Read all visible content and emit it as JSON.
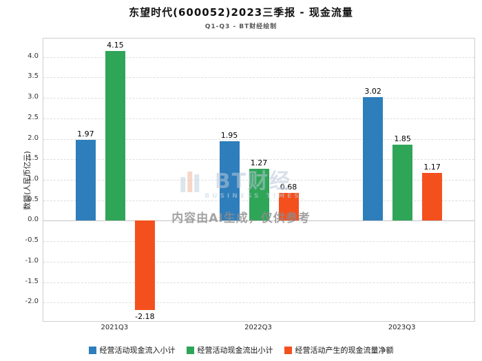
{
  "title": "东望时代(600052)2023三季报 - 现金流量",
  "subtitle": "Q1-Q3 - BT财经绘制",
  "ylabel": "数额(人民币亿元)",
  "watermark": {
    "brand": "BT财经",
    "brand_sub": "BUSINESS TIMES",
    "notice": "内容由AI生成，仅供参考"
  },
  "chart_data": {
    "type": "bar",
    "categories": [
      "2021Q3",
      "2022Q3",
      "2023Q3"
    ],
    "series": [
      {
        "name": "经营活动现金流入小计",
        "color": "#2e7ebc",
        "values": [
          1.97,
          1.95,
          3.02
        ]
      },
      {
        "name": "经营活动现金流出小计",
        "color": "#2fa558",
        "values": [
          4.15,
          1.27,
          1.85
        ]
      },
      {
        "name": "经营活动产生的现金流量净额",
        "color": "#f4501e",
        "values": [
          -2.18,
          0.68,
          1.17
        ]
      }
    ],
    "title": "东望时代(600052)2023三季报 - 现金流量",
    "xlabel": "",
    "ylabel": "数额(人民币亿元)",
    "ylim": [
      -2.45,
      4.45
    ],
    "yticks": [
      -2.0,
      -1.5,
      -1.0,
      -0.5,
      0.0,
      0.5,
      1.0,
      1.5,
      2.0,
      2.5,
      3.0,
      3.5,
      4.0
    ],
    "grid": true,
    "legend_position": "bottom"
  }
}
